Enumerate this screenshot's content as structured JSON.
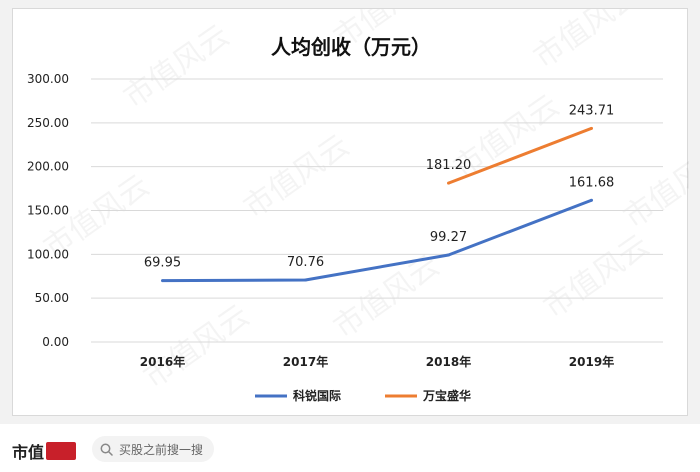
{
  "chart_data": {
    "type": "line",
    "title": "人均创收（万元）",
    "categories": [
      "2016年",
      "2017年",
      "2018年",
      "2019年"
    ],
    "yticks": [
      "0.00",
      "50.00",
      "100.00",
      "150.00",
      "200.00",
      "250.00",
      "300.00"
    ],
    "ylim": [
      0,
      300
    ],
    "grid": true,
    "legend_position": "bottom",
    "series": [
      {
        "name": "科锐国际",
        "color": "#4472C4",
        "values": [
          69.95,
          70.76,
          99.27,
          161.68
        ],
        "labels": [
          "69.95",
          "70.76",
          "99.27",
          "161.68"
        ]
      },
      {
        "name": "万宝盛华",
        "color": "#ED7D31",
        "values": [
          null,
          null,
          181.2,
          243.71
        ],
        "labels": [
          "",
          "",
          "181.20",
          "243.71"
        ]
      }
    ],
    "watermark": "市值风云"
  },
  "footer": {
    "brand": "市值",
    "search_placeholder": "买股之前搜一搜",
    "search_icon": "search-icon"
  }
}
